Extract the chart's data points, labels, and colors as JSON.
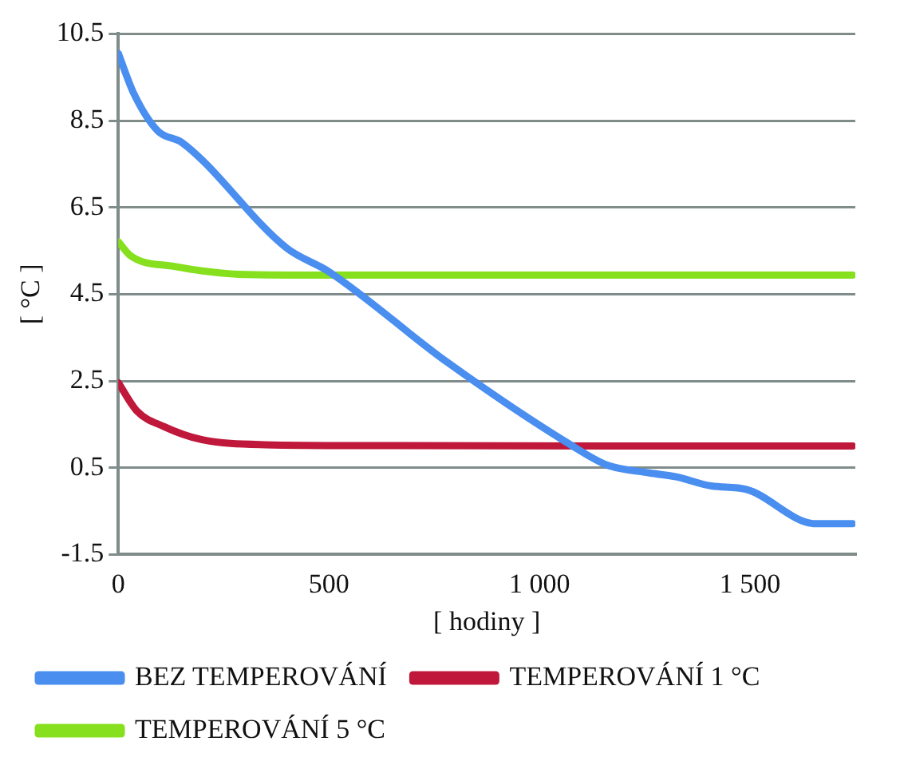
{
  "chart_data": {
    "type": "line",
    "xlabel": "[ hodiny ]",
    "ylabel": "[ °C ]",
    "xlim": [
      0,
      1750
    ],
    "xticks": [
      0,
      500,
      {
        "value": 1000,
        "label": "1 000"
      },
      {
        "value": 1500,
        "label": "1 500"
      }
    ],
    "ylim": [
      -1.5,
      10.5
    ],
    "yticks": [
      -1.5,
      0.5,
      2.5,
      4.5,
      6.5,
      8.5,
      10.5
    ],
    "grid": "y",
    "legend": "bottom",
    "marker": "none",
    "line_style": "solid",
    "series": [
      {
        "name": "BEZ TEMPEROVÁNÍ",
        "color": "#4a8ef0",
        "x": [
          0,
          37,
          94,
          152,
          400,
          500,
          780,
          1072,
          1161,
          1262,
          1325,
          1408,
          1491,
          1656,
          1744
        ],
        "values": [
          10.05,
          9.12,
          8.26,
          7.99,
          5.56,
          5.02,
          2.94,
          1.04,
          0.56,
          0.38,
          0.29,
          0.08,
          0.0,
          -0.79,
          -0.79
        ]
      },
      {
        "name": "TEMPEROVÁNÍ 1 °C",
        "color": "#c0183a",
        "x": [
          0,
          44,
          108,
          197,
          349,
          600,
          1744
        ],
        "values": [
          2.46,
          1.81,
          1.45,
          1.15,
          1.03,
          1.01,
          1.0
        ]
      },
      {
        "name": "TEMPEROVÁNÍ 5 °C",
        "color": "#86e01e",
        "x": [
          0,
          30,
          133,
          285,
          500,
          1744
        ],
        "values": [
          5.71,
          5.38,
          5.14,
          4.96,
          4.94,
          4.94
        ]
      }
    ]
  }
}
